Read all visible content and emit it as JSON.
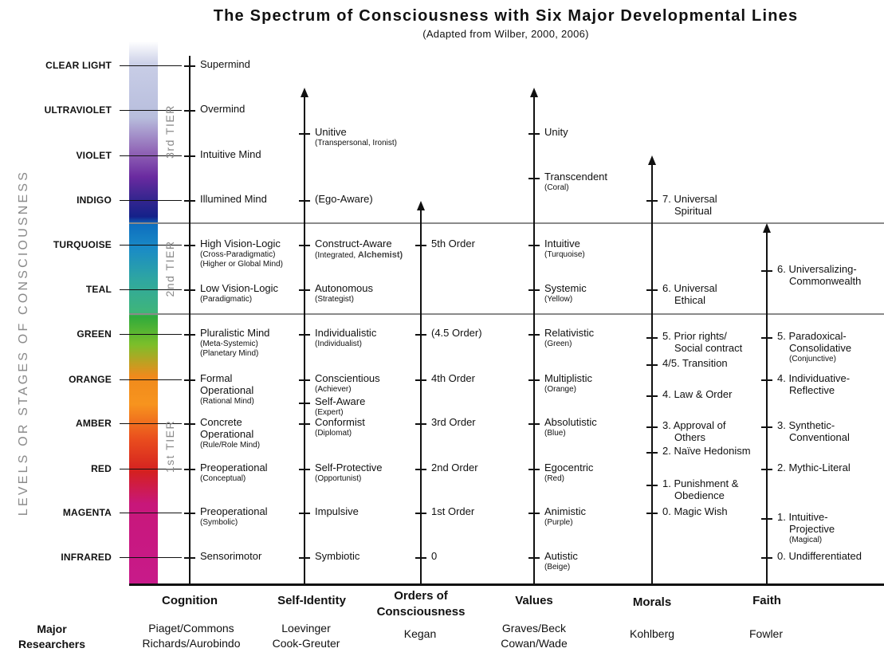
{
  "title": "The Spectrum of Consciousness with Six Major Developmental Lines",
  "subtitle": "(Adapted from Wilber, 2000, 2006)",
  "side_label": "LEVELS OR STAGES OF CONSCIOUSNESS",
  "tiers": [
    "3rd TIER",
    "2nd TIER",
    "1st TIER"
  ],
  "levels": [
    "CLEAR LIGHT",
    "ULTRAVIOLET",
    "VIOLET",
    "INDIGO",
    "TURQUOISE",
    "TEAL",
    "GREEN",
    "ORANGE",
    "AMBER",
    "RED",
    "MAGENTA",
    "INFRARED"
  ],
  "major_researchers_label": "Major Researchers",
  "columns": [
    {
      "key": "cognition",
      "header": "Cognition",
      "researchers": "Piaget/Commons\nRichards/Aurobindo",
      "stages": [
        {
          "main": "Supermind",
          "sub": ""
        },
        {
          "main": "Overmind",
          "sub": ""
        },
        {
          "main": "Intuitive Mind",
          "sub": ""
        },
        {
          "main": "Illumined Mind",
          "sub": ""
        },
        {
          "main": "High Vision-Logic",
          "sub": "(Cross-Paradigmatic)\n(Higher or Global Mind)"
        },
        {
          "main": "Low Vision-Logic",
          "sub": "(Paradigmatic)"
        },
        {
          "main": "Pluralistic Mind",
          "sub": "(Meta-Systemic)\n(Planetary Mind)"
        },
        {
          "main": "Formal\nOperational",
          "sub": "(Rational Mind)"
        },
        {
          "main": "Concrete\nOperational",
          "sub": "(Rule/Role Mind)"
        },
        {
          "main": "Preoperational",
          "sub": "(Conceptual)"
        },
        {
          "main": "Preoperational",
          "sub": "(Symbolic)"
        },
        {
          "main": "Sensorimotor",
          "sub": ""
        }
      ]
    },
    {
      "key": "self_identity",
      "header": "Self-Identity",
      "researchers": "Loevinger\nCook-Greuter",
      "stages": [
        {
          "main": "Unitive",
          "sub": "(Transpersonal, Ironist)"
        },
        {
          "main": "(Ego-Aware)",
          "sub": ""
        },
        {
          "main": "Construct-Aware",
          "sub": "(Integrated, ",
          "accent": "Alchemist)"
        },
        {
          "main": "Autonomous",
          "sub": "(Strategist)"
        },
        {
          "main": "Individualistic",
          "sub": "(Individualist)"
        },
        {
          "main": "Conscientious",
          "sub": "(Achiever)"
        },
        {
          "main": "Self-Aware",
          "sub": "(Expert)"
        },
        {
          "main": "Conformist",
          "sub": "(Diplomat)"
        },
        {
          "main": "Self-Protective",
          "sub": "(Opportunist)"
        },
        {
          "main": "Impulsive",
          "sub": ""
        },
        {
          "main": "Symbiotic",
          "sub": ""
        }
      ]
    },
    {
      "key": "orders",
      "header": "Orders of\nConsciousness",
      "researchers": "Kegan",
      "stages": [
        {
          "main": "5th Order",
          "sub": ""
        },
        {
          "main": "(4.5 Order)",
          "sub": ""
        },
        {
          "main": "4th Order",
          "sub": ""
        },
        {
          "main": "3rd Order",
          "sub": ""
        },
        {
          "main": "2nd Order",
          "sub": ""
        },
        {
          "main": "1st Order",
          "sub": ""
        },
        {
          "main": "0",
          "sub": ""
        }
      ]
    },
    {
      "key": "values",
      "header": "Values",
      "researchers": "Graves/Beck\nCowan/Wade",
      "stages": [
        {
          "main": "Unity",
          "sub": ""
        },
        {
          "main": "Transcendent",
          "sub": "(Coral)"
        },
        {
          "main": "Intuitive",
          "sub": "(Turquoise)"
        },
        {
          "main": "Systemic",
          "sub": "(Yellow)"
        },
        {
          "main": "Relativistic",
          "sub": "(Green)"
        },
        {
          "main": "Multiplistic",
          "sub": "(Orange)"
        },
        {
          "main": "Absolutistic",
          "sub": "(Blue)"
        },
        {
          "main": "Egocentric",
          "sub": "(Red)"
        },
        {
          "main": "Animistic",
          "sub": "(Purple)"
        },
        {
          "main": "Autistic",
          "sub": "(Beige)"
        }
      ]
    },
    {
      "key": "morals",
      "header": "Morals",
      "researchers": "Kohlberg",
      "stages": [
        {
          "main": "7. Universal\n    Spiritual",
          "sub": ""
        },
        {
          "main": "6. Universal\n    Ethical",
          "sub": ""
        },
        {
          "main": "5. Prior rights/\n    Social contract",
          "sub": ""
        },
        {
          "main": "4/5. Transition",
          "sub": ""
        },
        {
          "main": "4. Law & Order",
          "sub": ""
        },
        {
          "main": "3. Approval of\n    Others",
          "sub": ""
        },
        {
          "main": "2. Naïve Hedonism",
          "sub": ""
        },
        {
          "main": "1. Punishment &\n    Obedience",
          "sub": ""
        },
        {
          "main": "0. Magic Wish",
          "sub": ""
        }
      ]
    },
    {
      "key": "faith",
      "header": "Faith",
      "researchers": "Fowler",
      "stages": [
        {
          "main": "6. Universalizing-\n    Commonwealth",
          "sub": ""
        },
        {
          "main": "5. Paradoxical-\n    Consolidative",
          "sub": "       (Conjunctive)"
        },
        {
          "main": "4. Individuative-\n    Reflective",
          "sub": ""
        },
        {
          "main": "3. Synthetic-\n    Conventional",
          "sub": ""
        },
        {
          "main": "2. Mythic-Literal",
          "sub": ""
        },
        {
          "main": "1. Intuitive-\n    Projective",
          "sub": "       (Magical)"
        },
        {
          "main": "0. Undifferentiated",
          "sub": ""
        }
      ]
    }
  ]
}
